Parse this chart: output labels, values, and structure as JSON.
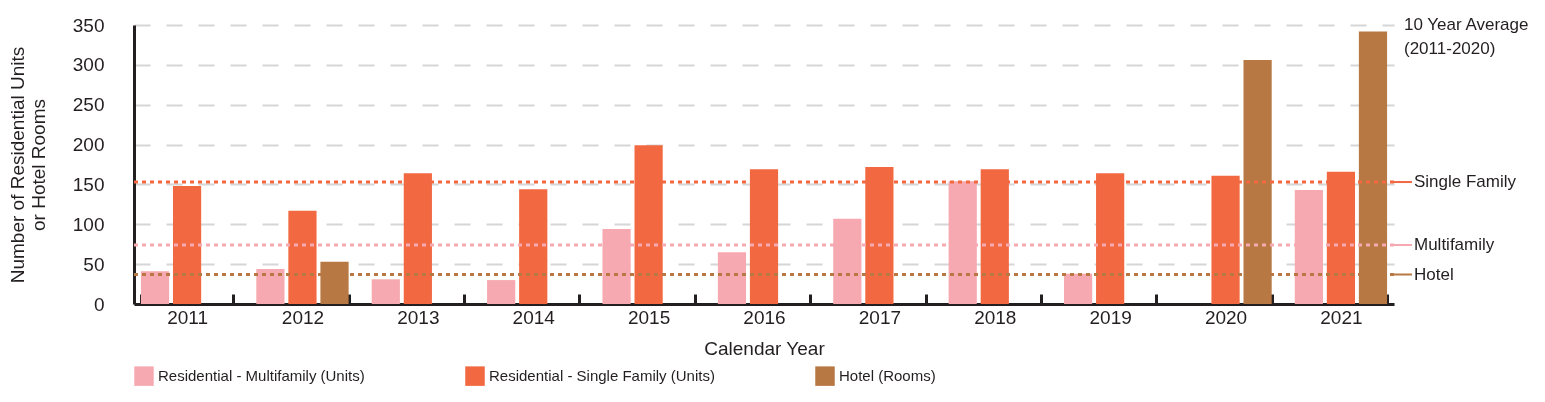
{
  "chart_data": {
    "type": "bar",
    "xlabel": "Calendar Year",
    "ylabel": "Number of Residential Units\nor Hotel Rooms",
    "categories": [
      "2011",
      "2012",
      "2013",
      "2014",
      "2015",
      "2016",
      "2017",
      "2018",
      "2019",
      "2020",
      "2021"
    ],
    "series": [
      {
        "name": "Residential - Multifamily (Units)",
        "color": "#f6a9b0",
        "values": [
          41,
          44,
          31,
          30,
          94,
          65,
          107,
          154,
          38,
          0,
          143
        ]
      },
      {
        "name": "Residential - Single Family (Units)",
        "color": "#f26841",
        "values": [
          148,
          117,
          164,
          144,
          199,
          169,
          172,
          169,
          164,
          161,
          166
        ]
      },
      {
        "name": "Hotel (Rooms)",
        "color": "#b87843",
        "values": [
          0,
          53,
          0,
          0,
          0,
          0,
          0,
          0,
          0,
          306,
          342
        ]
      }
    ],
    "ylim": [
      0,
      350
    ],
    "yticks": [
      0,
      50,
      100,
      150,
      200,
      250,
      300,
      350
    ],
    "grid": "y",
    "legend": "bottom",
    "ref_lines": [
      {
        "axis": "y",
        "value": 153,
        "label": "Single  Family",
        "color": "#f26841",
        "line_style": "dotted"
      },
      {
        "axis": "y",
        "value": 74,
        "label": "Multifamily",
        "color": "#f6a9b0",
        "line_style": "dotted"
      },
      {
        "axis": "y",
        "value": 37,
        "label": "Hotel",
        "color": "#b87843",
        "line_style": "dotted"
      }
    ],
    "annotations": [
      "10 Year Average\n(2011-2020)"
    ]
  }
}
